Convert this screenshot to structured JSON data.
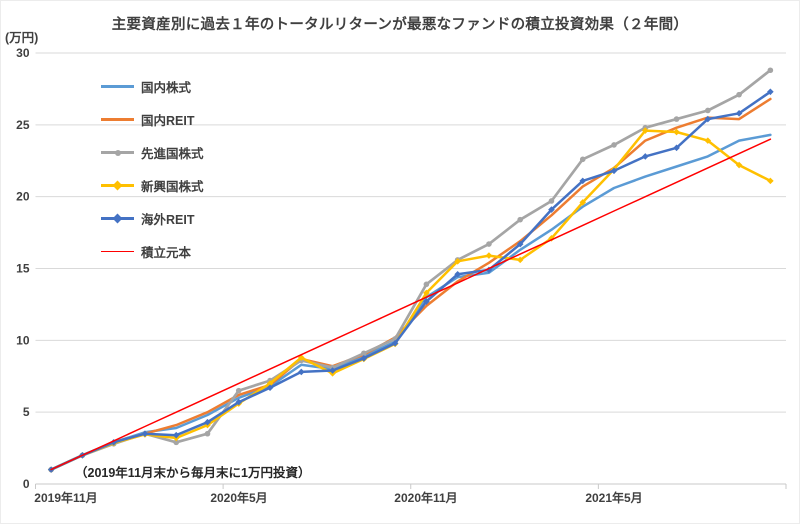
{
  "title": "主要資産別に過去１年のトータルリターンが最悪なファンドの積立投資効果（２年間）",
  "y_unit_label": "(万円)",
  "annotation": "（2019年11月末から毎月末に1万円投資）",
  "chart_data": {
    "type": "line",
    "title": "主要資産別に過去１年のトータルリターンが最悪なファンドの積立投資効果（２年間）",
    "ylabel": "(万円)",
    "ylim": [
      0,
      30
    ],
    "y_ticks": [
      0,
      5,
      10,
      15,
      20,
      25,
      30
    ],
    "x_tick_labels": [
      "2019年11月",
      "2020年5月",
      "2020年11月",
      "2021年5月"
    ],
    "x_description": "24 monthly points from 2019-11 to 2021-10, one point per month-end",
    "grid": "horizontal",
    "legend_position": "upper-left",
    "annotation": "（2019年11月末から毎月末に1万円投資）",
    "series": [
      {
        "name": "国内株式",
        "color": "#5B9BD5",
        "marker": "none",
        "width": 2.5,
        "values": [
          1,
          2,
          2.9,
          3.6,
          3.9,
          4.8,
          6.0,
          6.8,
          8.3,
          8.0,
          8.9,
          9.9,
          13.0,
          14.4,
          14.7,
          16.3,
          17.7,
          19.3,
          20.6,
          21.4,
          22.1,
          22.8,
          23.9,
          24.3
        ]
      },
      {
        "name": "国内REIT",
        "color": "#ED7D31",
        "marker": "none",
        "width": 2.5,
        "values": [
          1,
          2,
          2.9,
          3.5,
          4.1,
          5.0,
          6.2,
          6.9,
          8.7,
          8.2,
          9.0,
          10.2,
          12.4,
          14.1,
          15.4,
          16.9,
          18.7,
          20.7,
          22.0,
          23.9,
          24.8,
          25.5,
          25.4,
          26.8
        ]
      },
      {
        "name": "先進国株式",
        "color": "#A5A5A5",
        "marker": "circle",
        "width": 2.7,
        "values": [
          1,
          2,
          2.8,
          3.5,
          2.9,
          3.5,
          6.5,
          7.2,
          8.6,
          8.1,
          9.1,
          10.1,
          13.9,
          15.6,
          16.7,
          18.4,
          19.7,
          22.6,
          23.6,
          24.8,
          25.4,
          26.0,
          27.1,
          28.8
        ]
      },
      {
        "name": "新興国株式",
        "color": "#FFC000",
        "marker": "diamond",
        "width": 2.5,
        "values": [
          1,
          2,
          2.85,
          3.45,
          3.2,
          4.1,
          5.6,
          7.0,
          8.8,
          7.7,
          8.7,
          9.75,
          13.3,
          15.5,
          15.9,
          15.6,
          17.1,
          19.6,
          21.9,
          24.6,
          24.5,
          23.9,
          22.2,
          21.1
        ]
      },
      {
        "name": "海外REIT",
        "color": "#4472C4",
        "marker": "diamond",
        "width": 2.5,
        "values": [
          1,
          2,
          2.9,
          3.5,
          3.4,
          4.3,
          5.7,
          6.7,
          7.8,
          7.9,
          8.75,
          9.8,
          12.7,
          14.6,
          14.9,
          16.7,
          19.1,
          21.1,
          21.8,
          22.8,
          23.4,
          25.4,
          25.8,
          27.3
        ]
      },
      {
        "name": "積立元本",
        "color": "#FF0000",
        "marker": "none",
        "width": 1.5,
        "values": [
          1,
          2,
          3,
          4,
          5,
          6,
          7,
          8,
          9,
          10,
          11,
          12,
          13,
          14,
          15,
          16,
          17,
          18,
          19,
          20,
          21,
          22,
          23,
          24
        ]
      }
    ]
  }
}
